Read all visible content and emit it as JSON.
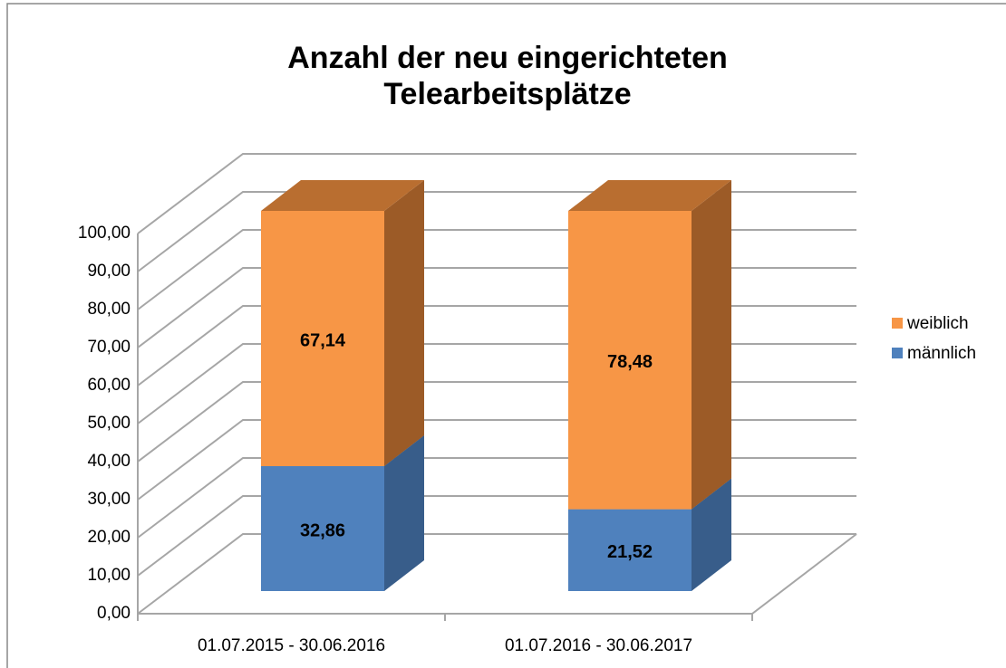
{
  "chart_data": {
    "type": "bar3d_stacked",
    "title": "Anzahl der neu eingerichteten Telearbeitsplätze",
    "categories": [
      "01.07.2015 - 30.06.2016",
      "01.07.2016 - 30.06.2017"
    ],
    "series": [
      {
        "name": "männlich",
        "color": "#4f81bd",
        "side_color": "#385d8a",
        "top_color": "#3d6798",
        "values": [
          32.86,
          21.52
        ],
        "value_labels": [
          "32,86",
          "21,52"
        ]
      },
      {
        "name": "weiblich",
        "color": "#f79646",
        "side_color": "#9c5b27",
        "top_color": "#b96e30",
        "values": [
          67.14,
          78.48
        ],
        "value_labels": [
          "67,14",
          "78,48"
        ]
      }
    ],
    "ylim": [
      0,
      100
    ],
    "yticks": [
      {
        "value": 0,
        "label": "0,00"
      },
      {
        "value": 10,
        "label": "10,00"
      },
      {
        "value": 20,
        "label": "20,00"
      },
      {
        "value": 30,
        "label": "30,00"
      },
      {
        "value": 40,
        "label": "40,00"
      },
      {
        "value": 50,
        "label": "50,00"
      },
      {
        "value": 60,
        "label": "60,00"
      },
      {
        "value": 70,
        "label": "70,00"
      },
      {
        "value": 80,
        "label": "80,00"
      },
      {
        "value": 90,
        "label": "90,00"
      },
      {
        "value": 100,
        "label": "100,00"
      }
    ],
    "grid": true,
    "legend": "right"
  }
}
